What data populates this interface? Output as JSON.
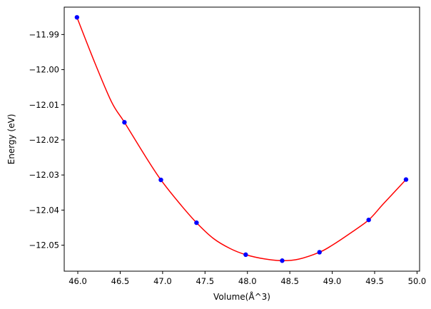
{
  "chart_data": {
    "type": "line",
    "title": "",
    "xlabel": "Volume(Å^3)",
    "ylabel": "Energy (eV)",
    "xlim": [
      45.84,
      50.03
    ],
    "ylim": [
      -12.0574,
      -11.9822
    ],
    "xticks": [
      46.0,
      46.5,
      47.0,
      47.5,
      48.0,
      48.5,
      49.0,
      49.5,
      50.0
    ],
    "xtick_labels": [
      "46.0",
      "46.5",
      "47.0",
      "47.5",
      "48.0",
      "48.5",
      "49.0",
      "49.5",
      "50.0"
    ],
    "yticks": [
      -11.99,
      -12.0,
      -12.01,
      -12.02,
      -12.03,
      -12.04,
      -12.05
    ],
    "ytick_labels": [
      "−11.99",
      "−12.00",
      "−12.01",
      "−12.02",
      "−12.03",
      "−12.04",
      "−12.05"
    ],
    "grid": false,
    "series": [
      {
        "kind": "scatter",
        "color": "#0000ff",
        "marker": "circle",
        "x": [
          45.99,
          46.55,
          46.98,
          47.4,
          47.98,
          48.41,
          48.85,
          49.43,
          49.87
        ],
        "y": [
          -11.9851,
          -12.015,
          -12.0314,
          -12.0436,
          -12.0527,
          -12.0544,
          -12.052,
          -12.0428,
          -12.0313
        ]
      },
      {
        "kind": "fit-curve",
        "color": "#ff0000",
        "x": [
          45.99,
          46.2,
          46.4,
          46.55,
          46.8,
          46.98,
          47.2,
          47.4,
          47.6,
          47.8,
          47.98,
          48.2,
          48.41,
          48.6,
          48.85,
          49.0,
          49.2,
          49.43,
          49.6,
          49.87
        ],
        "y": [
          -11.9851,
          -11.998,
          -12.0093,
          -12.015,
          -12.0248,
          -12.0314,
          -12.0381,
          -12.0436,
          -12.0481,
          -12.051,
          -12.0527,
          -12.0539,
          -12.0544,
          -12.054,
          -12.052,
          -12.05,
          -12.0468,
          -12.0428,
          -12.0383,
          -12.0313
        ]
      }
    ]
  }
}
